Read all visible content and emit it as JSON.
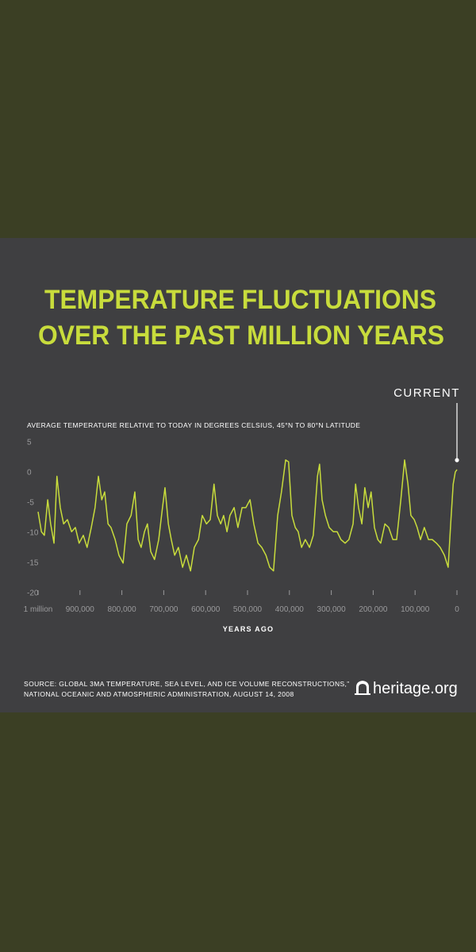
{
  "chart_data": {
    "type": "line",
    "title": [
      "TEMPERATURE FLUCTUATIONS",
      "OVER THE PAST MILLION YEARS"
    ],
    "subtitle": "AVERAGE TEMPERATURE RELATIVE TO TODAY IN DEGREES CELSIUS, 45°N TO 80°N LATITUDE",
    "annotation": "CURRENT",
    "xlabel": "YEARS AGO",
    "source": [
      "SOURCE: GLOBAL 3MA TEMPERATURE, SEA LEVEL, AND ICE VOLUME RECONSTRUCTIONS,”",
      "NATIONAL OCEANIC AND ATMOSPHERIC ADMINISTRATION, AUGUST 14, 2008"
    ],
    "logo": "heritage.org",
    "color": "#c8dc3c",
    "xlim": [
      1000000,
      0
    ],
    "xticks": [
      {
        "value": 1000000,
        "label": "1 million"
      },
      {
        "value": 900000,
        "label": "900,000"
      },
      {
        "value": 800000,
        "label": "800,000"
      },
      {
        "value": 700000,
        "label": "700,000"
      },
      {
        "value": 600000,
        "label": "600,000"
      },
      {
        "value": 500000,
        "label": "500,000"
      },
      {
        "value": 400000,
        "label": "400,000"
      },
      {
        "value": 300000,
        "label": "300,000"
      },
      {
        "value": 200000,
        "label": "200,000"
      },
      {
        "value": 100000,
        "label": "100,000"
      },
      0
    ],
    "ylim": [
      -20,
      5
    ],
    "yticks": [
      5,
      0,
      -5,
      -10,
      -15,
      -20
    ],
    "x": [
      1000000,
      992000,
      985000,
      977000,
      970000,
      962000,
      955000,
      947000,
      939000,
      930000,
      920000,
      911000,
      902000,
      892000,
      883000,
      873000,
      864000,
      856000,
      848000,
      841000,
      833000,
      826000,
      816000,
      807000,
      797000,
      788000,
      778000,
      769000,
      761000,
      754000,
      746000,
      739000,
      731000,
      722000,
      712000,
      703000,
      697000,
      689000,
      682000,
      674000,
      665000,
      655000,
      646000,
      636000,
      627000,
      617000,
      608000,
      598000,
      589000,
      580000,
      572000,
      564000,
      557000,
      549000,
      542000,
      532000,
      523000,
      513000,
      504000,
      494000,
      485000,
      475000,
      466000,
      456000,
      447000,
      438000,
      428000,
      419000,
      409000,
      402000,
      394000,
      386000,
      379000,
      371000,
      362000,
      352000,
      343000,
      333000,
      328000,
      322000,
      314000,
      305000,
      295000,
      286000,
      277000,
      267000,
      258000,
      248000,
      242000,
      235000,
      227000,
      220000,
      212000,
      205000,
      197000,
      189000,
      182000,
      172000,
      163000,
      153000,
      144000,
      134000,
      125000,
      117000,
      110000,
      102000,
      95000,
      87000,
      78000,
      68000,
      59000,
      49000,
      40000,
      30000,
      21000,
      15000,
      9000,
      4000,
      0
    ],
    "values": [
      -6.6,
      -9.9,
      -10.5,
      -4.6,
      -8.6,
      -11.8,
      -0.7,
      -5.9,
      -8.6,
      -7.9,
      -9.9,
      -9.2,
      -11.8,
      -10.5,
      -12.5,
      -9.2,
      -5.9,
      -0.7,
      -4.6,
      -3.3,
      -8.6,
      -9.2,
      -11.2,
      -13.8,
      -15.1,
      -8.6,
      -7.2,
      -3.3,
      -11.2,
      -12.5,
      -9.9,
      -8.6,
      -13.2,
      -14.5,
      -11.2,
      -5.9,
      -2.6,
      -8.6,
      -11.2,
      -13.8,
      -12.5,
      -15.8,
      -13.8,
      -16.4,
      -12.5,
      -11.2,
      -7.2,
      -8.6,
      -7.9,
      -2.0,
      -7.2,
      -8.6,
      -7.2,
      -9.9,
      -7.2,
      -5.9,
      -9.2,
      -5.9,
      -5.9,
      -4.6,
      -8.6,
      -11.8,
      -12.5,
      -13.8,
      -15.8,
      -16.4,
      -7.2,
      -3.3,
      2.0,
      1.7,
      -7.2,
      -9.2,
      -9.9,
      -12.5,
      -11.2,
      -12.5,
      -10.5,
      -0.7,
      1.3,
      -4.6,
      -7.2,
      -9.2,
      -9.9,
      -9.9,
      -11.2,
      -11.8,
      -11.2,
      -8.6,
      -2.0,
      -5.9,
      -8.6,
      -2.6,
      -5.9,
      -3.3,
      -9.2,
      -11.2,
      -11.8,
      -8.6,
      -9.2,
      -11.2,
      -11.2,
      -4.6,
      2.0,
      -2.0,
      -7.2,
      -7.9,
      -9.2,
      -11.2,
      -9.2,
      -11.2,
      -11.2,
      -11.8,
      -12.5,
      -13.8,
      -15.8,
      -8.6,
      -2.0,
      0,
      0.4
    ]
  }
}
